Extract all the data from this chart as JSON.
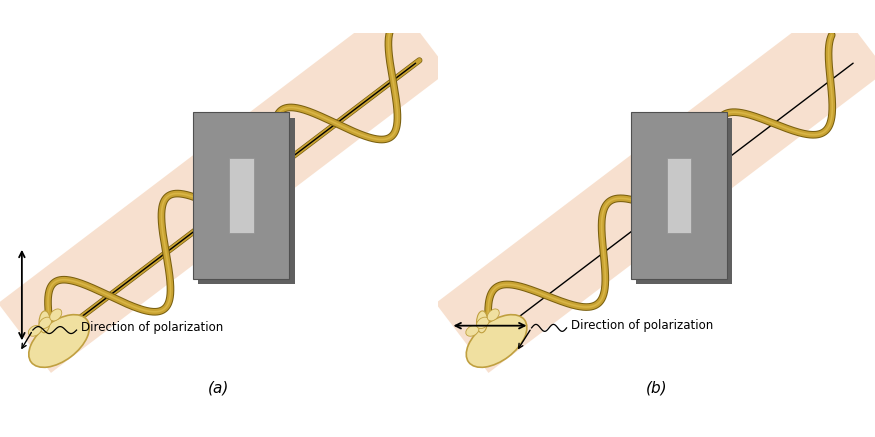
{
  "bg_color": "#ffffff",
  "panel_a_label": "(a)",
  "panel_b_label": "(b)",
  "label_polarization": "Direction of polarization",
  "rope_color": "#c8a232",
  "rope_color_dark": "#7a6010",
  "rope_color_light": "#e8c85a",
  "board_color": "#909090",
  "board_dark": "#707070",
  "board_hole_color": "#c8c8c8",
  "plane_color": "#f2c8a8",
  "plane_alpha": 0.55,
  "hand_color": "#f0e0a0",
  "hand_outline": "#c0a040",
  "axis_lw": 1.0,
  "rope_lw_main": 4.0,
  "rope_lw_shadow": 5.5
}
